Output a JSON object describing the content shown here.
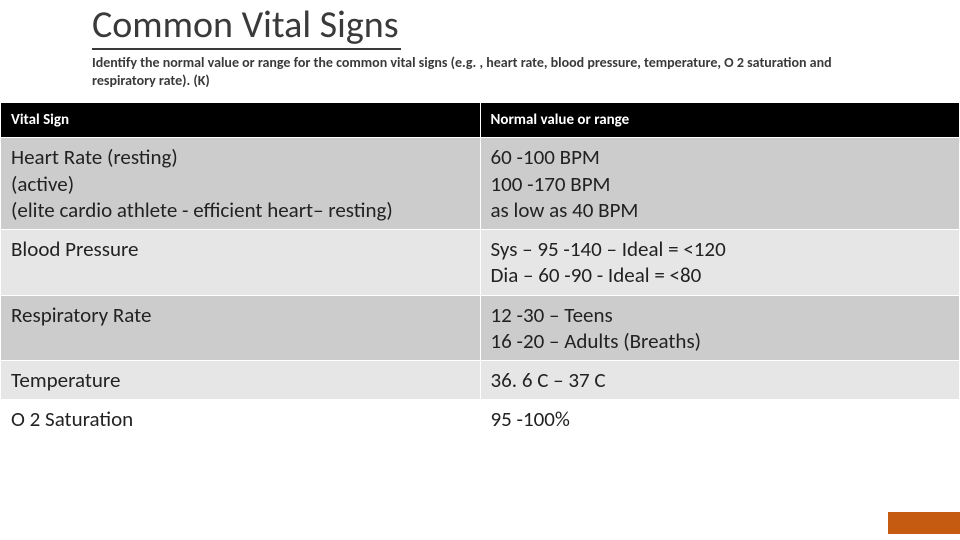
{
  "title": "Common Vital Signs",
  "subtitle": "Identify the normal value or range for the common vital signs (e.g. , heart rate, blood pressure, temperature, O 2 saturation and respiratory rate). (K)",
  "table": {
    "columns": [
      "Vital Sign",
      "Normal value or range"
    ],
    "column_widths": [
      "50%",
      "50%"
    ],
    "header_bg": "#000000",
    "header_fg": "#ffffff",
    "header_fontsize": 15,
    "body_fontsize": 21,
    "row_colors": [
      "#cccccc",
      "#e6e6e6",
      "#cccccc",
      "#e6e6e6",
      "#ffffff"
    ],
    "rows": [
      {
        "vital": "Heart Rate (resting)\n(active)\n(elite cardio athlete - efficient heart– resting)",
        "value": "60 -100 BPM\n100 -170 BPM\nas low as 40 BPM"
      },
      {
        "vital": "Blood Pressure",
        "value": "Sys – 95 -140 – Ideal = <120\nDia – 60 -90 -  Ideal = <80"
      },
      {
        "vital": "Respiratory Rate",
        "value": "12 -30 – Teens\n16 -20 – Adults (Breaths)"
      },
      {
        "vital": "Temperature",
        "value": "36. 6 C – 37 C"
      },
      {
        "vital": "O 2 Saturation",
        "value": "95 -100%"
      }
    ]
  },
  "accent_color": "#c55a11",
  "title_underline_color": "#3a3a3a",
  "title_fontsize": 38,
  "subtitle_fontsize": 14
}
